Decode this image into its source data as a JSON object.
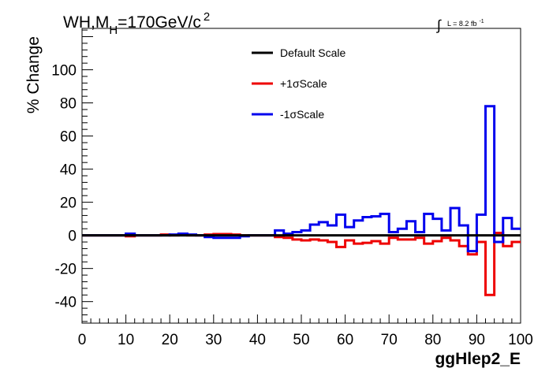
{
  "chart_data": {
    "type": "line",
    "title_main": "WH,M",
    "title_sub": "H",
    "title_rest": "=170GeV/c",
    "title_sup": "2",
    "lumi_label": "L = 8.2 fb",
    "lumi_sup": "-1",
    "lumi_integral": "∫",
    "xlabel": "ggHlep2_E",
    "ylabel": "% Change",
    "xlim": [
      0,
      100
    ],
    "ylim": [
      -53,
      125
    ],
    "xticks": [
      0,
      10,
      20,
      30,
      40,
      50,
      60,
      70,
      80,
      90,
      100
    ],
    "yticks": [
      -40,
      -20,
      0,
      20,
      40,
      60,
      80,
      100
    ],
    "bin_edges": [
      0,
      2,
      4,
      6,
      8,
      10,
      12,
      14,
      16,
      18,
      20,
      22,
      24,
      26,
      28,
      30,
      32,
      34,
      36,
      38,
      40,
      42,
      44,
      46,
      48,
      50,
      52,
      54,
      56,
      58,
      60,
      62,
      64,
      66,
      68,
      70,
      72,
      74,
      76,
      78,
      80,
      82,
      84,
      86,
      88,
      90,
      92,
      94,
      96,
      98,
      100
    ],
    "legend_placement": "top-center",
    "series": [
      {
        "name": "Default Scale",
        "color": "#000000",
        "values": [
          0,
          0,
          0,
          0,
          0,
          0,
          0,
          0,
          0,
          0,
          0,
          0,
          0,
          0,
          0,
          0,
          0,
          0,
          0,
          0,
          0,
          0,
          0,
          0,
          0,
          0,
          0,
          0,
          0,
          0,
          0,
          0,
          0,
          0,
          0,
          0,
          0,
          0,
          0,
          0,
          0,
          0,
          0,
          0,
          0,
          0,
          0,
          0,
          0,
          0
        ]
      },
      {
        "name": "+1σScale",
        "color": "#ee0000",
        "values": [
          0,
          0,
          0,
          0,
          0,
          -0.5,
          0,
          0,
          0,
          0.5,
          0,
          0.3,
          0,
          0,
          0.5,
          0.8,
          0.8,
          0.5,
          0,
          0,
          0,
          0,
          -1,
          -1.5,
          -2.5,
          -3,
          -2.5,
          -3,
          -4,
          -7,
          -3,
          -5,
          -4.5,
          -3.5,
          -5,
          -1.5,
          -2.5,
          -2.5,
          -1.5,
          -5,
          -3.5,
          -1.5,
          -3,
          -6.5,
          -11.5,
          -4,
          -36,
          1.5,
          -6.5,
          -4
        ]
      },
      {
        "name": "-1σScale",
        "color": "#0000ee",
        "values": [
          0,
          0,
          0,
          0,
          0,
          1,
          0,
          0,
          0,
          0,
          0.5,
          1,
          0.5,
          0,
          -1,
          -1.5,
          -1.5,
          -1.5,
          -0.5,
          0,
          0,
          0,
          3,
          1,
          2,
          3,
          6.5,
          8,
          6,
          12.5,
          5,
          9,
          11,
          11.5,
          13,
          2,
          4,
          8.5,
          2,
          13,
          10,
          3,
          16.5,
          6,
          -9.5,
          12.5,
          78,
          -4,
          10.5,
          4
        ]
      }
    ]
  }
}
